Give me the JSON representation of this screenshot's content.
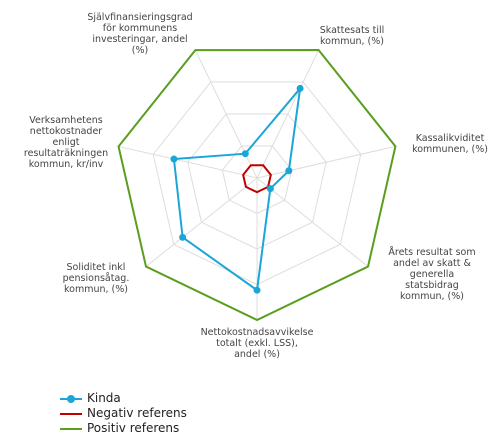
{
  "chart_data": {
    "type": "radar",
    "categories": [
      "Skattesats till\nkommun, (%)",
      "Kassalikviditet\nkommunen, (%)",
      "Årets resultat som\nandel av skatt &\ngenerella\nstatsbidrag\nkommun, (%)",
      "Nettokostnadsavvikelse\ntotalt (exkl. LSS),\nandel (%)",
      "Soliditet inkl\npensionsåtag.\nkommun, (%)",
      "Verksamhetens\nnettokostnader\nenligt\nresultaträkningen\nkommun, kr/inv",
      "Självfinansieringsgrad\nför kommunens\ninvesteringar, andel\n(%)"
    ],
    "series": [
      {
        "name": "Kinda",
        "color": "#1aa7d8",
        "values": [
          70,
          23,
          12,
          79,
          67,
          60,
          19
        ]
      },
      {
        "name": "Negativ referens",
        "color": "#c00000",
        "values": [
          10,
          10,
          10,
          10,
          10,
          10,
          10
        ]
      },
      {
        "name": "Positiv referens",
        "color": "#5a9e1e",
        "values": [
          100,
          100,
          100,
          100,
          100,
          100,
          100
        ]
      }
    ],
    "rlim": [
      0,
      100
    ],
    "rticks": [
      25,
      50,
      75
    ],
    "grid": true
  }
}
